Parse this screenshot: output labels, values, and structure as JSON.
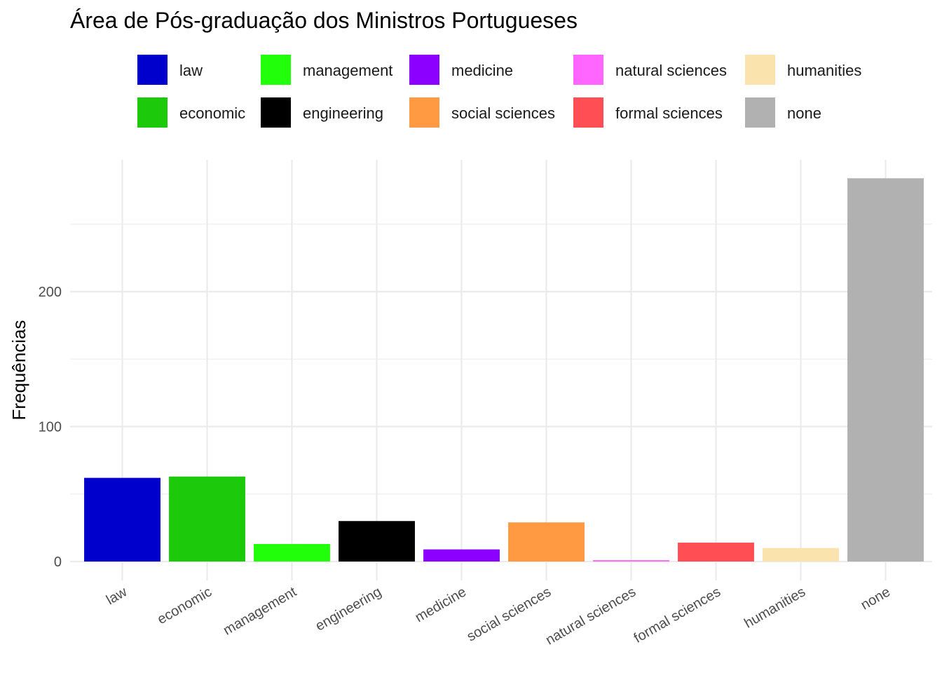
{
  "chart_data": {
    "type": "bar",
    "title": "Área de Pós-graduação dos Ministros Portugueses",
    "xlabel": "",
    "ylabel": "Frequências",
    "categories": [
      "law",
      "economic",
      "management",
      "engineering",
      "medicine",
      "social sciences",
      "natural sciences",
      "formal sciences",
      "humanities",
      "none"
    ],
    "values": [
      62,
      63,
      13,
      30,
      9,
      29,
      1,
      14,
      10,
      284
    ],
    "colors": [
      "#0000CD",
      "#1CC90B",
      "#22FF0A",
      "#000000",
      "#8C00FF",
      "#FF9A42",
      "#FF66FF",
      "#FF4F55",
      "#FBE3AD",
      "#B1B1B1"
    ],
    "ylim": [
      0,
      300
    ],
    "yticks": [
      0,
      100,
      200
    ],
    "grid": true,
    "legend_position": "top",
    "legend": {
      "rows": [
        [
          "law",
          "management",
          "medicine",
          "natural sciences",
          "humanities"
        ],
        [
          "economic",
          "engineering",
          "social sciences",
          "formal sciences",
          "none"
        ]
      ]
    }
  }
}
